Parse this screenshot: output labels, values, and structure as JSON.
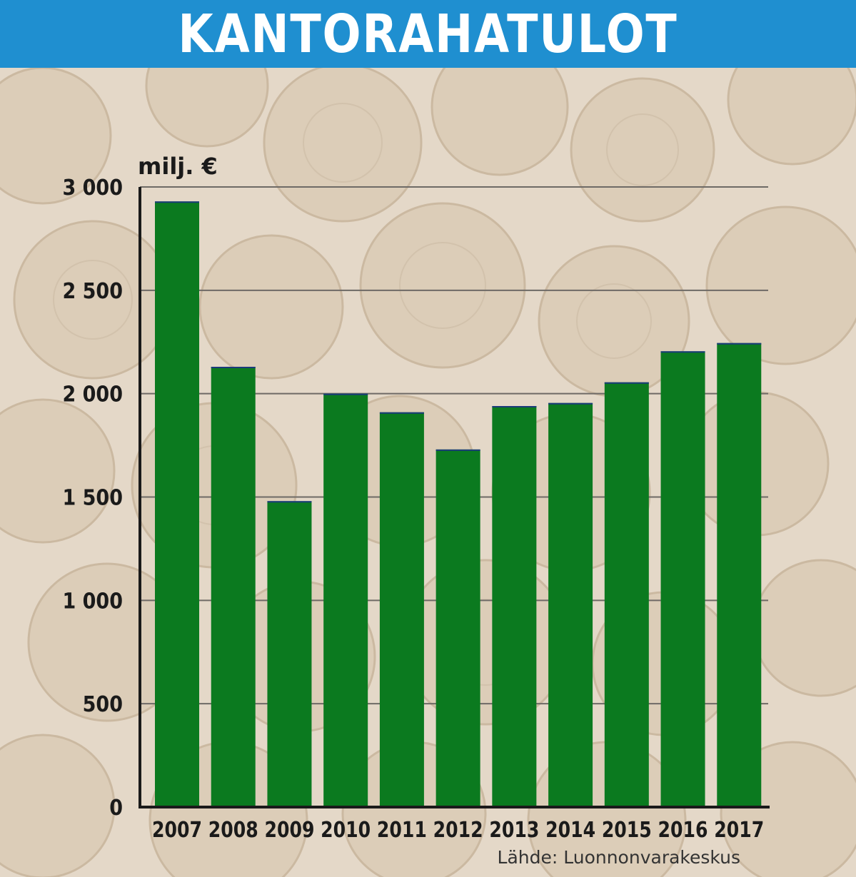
{
  "header": {
    "title": "KANTORAHATULOT"
  },
  "colors": {
    "bar": "#0b7a1f",
    "header": "#1f8fd0",
    "background": "#e2d6c6",
    "grid": "#6e6a66"
  },
  "chart_data": {
    "type": "bar",
    "categories": [
      "2007",
      "2008",
      "2009",
      "2010",
      "2011",
      "2012",
      "2013",
      "2014",
      "2015",
      "2016",
      "2017"
    ],
    "series": [
      {
        "values": [
          2930,
          2130,
          1480,
          2000,
          1910,
          1730,
          1940,
          1955,
          2055,
          2205,
          2245
        ]
      }
    ],
    "ylabel": "milj. €",
    "ylim": [
      0,
      3000
    ],
    "yticks": [
      0,
      500,
      1000,
      1500,
      2000,
      2500,
      3000
    ],
    "ytick_labels": [
      "0",
      "500",
      "1 000",
      "1 500",
      "2 000",
      "2 500",
      "3 000"
    ],
    "grid": true,
    "source": "Lähde: Luonnonvarakeskus"
  }
}
